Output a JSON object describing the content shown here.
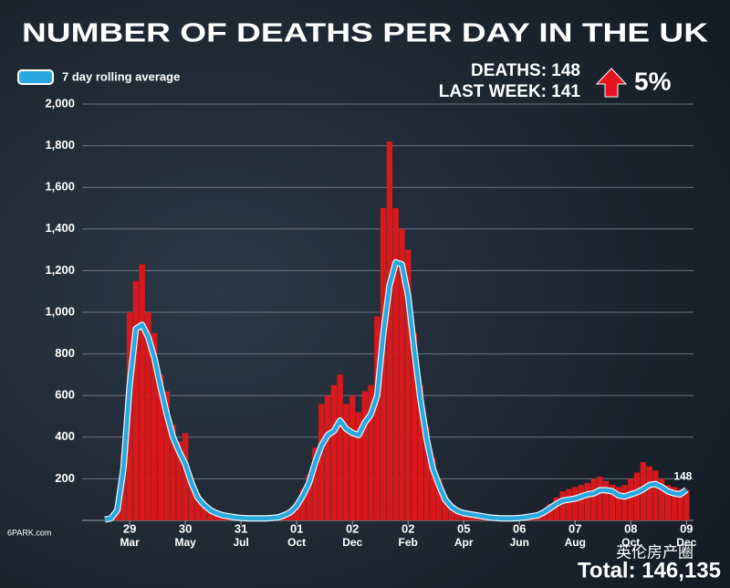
{
  "chart_data": {
    "type": "bar_line",
    "title": "NUMBER OF DEATHS PER DAY IN THE UK",
    "stats": {
      "deaths": "DEATHS: 148",
      "last_week": "LAST WEEK: 141",
      "change": "5%"
    },
    "total": "Total: 146,135",
    "watermarks": [
      "6PARK.com",
      "英伦房产圈"
    ],
    "categories": [
      null,
      null,
      null,
      null,
      [
        "29",
        "Mar"
      ],
      null,
      null,
      null,
      null,
      null,
      null,
      null,
      null,
      [
        "30",
        "May"
      ],
      null,
      null,
      null,
      null,
      null,
      null,
      null,
      null,
      [
        "31",
        "Jul"
      ],
      null,
      null,
      null,
      null,
      null,
      null,
      null,
      null,
      [
        "01",
        "Oct"
      ],
      null,
      null,
      null,
      null,
      null,
      null,
      null,
      null,
      [
        "02",
        "Dec"
      ],
      null,
      null,
      null,
      null,
      null,
      null,
      null,
      null,
      [
        "02",
        "Feb"
      ],
      null,
      null,
      null,
      null,
      null,
      null,
      null,
      null,
      [
        "05",
        "Apr"
      ],
      null,
      null,
      null,
      null,
      null,
      null,
      null,
      null,
      [
        "06",
        "Jun"
      ],
      null,
      null,
      null,
      null,
      null,
      null,
      null,
      null,
      [
        "07",
        "Aug"
      ],
      null,
      null,
      null,
      null,
      null,
      null,
      null,
      null,
      [
        "08",
        "Oct"
      ],
      null,
      null,
      null,
      null,
      null,
      null,
      null,
      null,
      [
        "09",
        "Dec"
      ]
    ],
    "series": [
      {
        "color": "#d7191c",
        "values": [
          0,
          12,
          70,
          320,
          1000,
          1150,
          1230,
          1000,
          900,
          700,
          620,
          460,
          380,
          420,
          200,
          130,
          90,
          60,
          40,
          30,
          25,
          18,
          15,
          12,
          12,
          12,
          12,
          15,
          18,
          30,
          50,
          85,
          150,
          220,
          350,
          560,
          600,
          650,
          700,
          560,
          600,
          520,
          620,
          650,
          980,
          1500,
          1820,
          1500,
          1400,
          1300,
          900,
          650,
          450,
          300,
          200,
          120,
          80,
          55,
          40,
          35,
          30,
          25,
          18,
          15,
          12,
          12,
          12,
          15,
          20,
          25,
          30,
          50,
          80,
          110,
          140,
          150,
          160,
          170,
          180,
          200,
          210,
          190,
          170,
          160,
          170,
          200,
          230,
          280,
          260,
          240,
          200,
          170,
          160,
          150,
          148
        ]
      },
      {
        "name": "7 day rolling average",
        "color": "#29a8e0",
        "values": [
          5,
          10,
          50,
          250,
          650,
          920,
          940,
          880,
          780,
          640,
          510,
          400,
          330,
          270,
          180,
          110,
          75,
          50,
          35,
          25,
          20,
          15,
          12,
          10,
          10,
          10,
          10,
          12,
          15,
          25,
          40,
          70,
          120,
          180,
          280,
          360,
          410,
          430,
          480,
          440,
          420,
          410,
          470,
          510,
          600,
          900,
          1130,
          1240,
          1230,
          1080,
          820,
          580,
          390,
          250,
          170,
          100,
          65,
          45,
          35,
          30,
          25,
          20,
          15,
          12,
          10,
          10,
          10,
          12,
          15,
          20,
          25,
          40,
          60,
          80,
          95,
          100,
          105,
          115,
          125,
          130,
          145,
          145,
          140,
          120,
          115,
          125,
          135,
          150,
          170,
          175,
          160,
          140,
          130,
          125,
          148
        ]
      }
    ],
    "ylim": [
      0,
      2000
    ],
    "yticks": [
      200,
      400,
      600,
      800,
      {
        "value": 1000,
        "label": "1,000"
      },
      {
        "value": 1200,
        "label": "1,200"
      },
      {
        "value": 1400,
        "label": "1,400"
      },
      {
        "value": 1600,
        "label": "1,600"
      },
      {
        "value": 1800,
        "label": "1,800"
      },
      {
        "value": 2000,
        "label": "2,000"
      }
    ],
    "grid": true
  }
}
